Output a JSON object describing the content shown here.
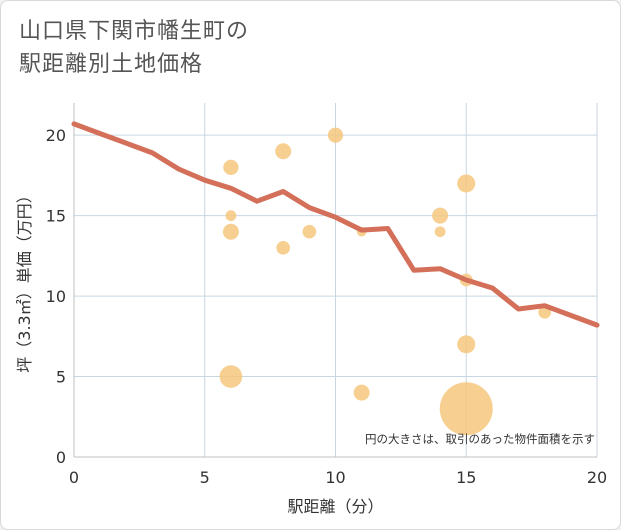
{
  "page": {
    "title_line1": "山口県下関市幡生町の",
    "title_line2": "駅距離別土地価格"
  },
  "colors": {
    "bubble": "#f5c77e",
    "line": "#d4705a",
    "grid": "#c8d6e2",
    "frame": "#c0c0c0"
  },
  "chart_data": {
    "type": "scatter",
    "title": "山口県下関市幡生町の駅距離別土地価格",
    "xlabel": "駅距離（分）",
    "ylabel": "坪（3.3㎡）単価（万円）",
    "xlim": [
      0,
      20
    ],
    "ylim": [
      0,
      22
    ],
    "xticks": [
      0,
      5,
      10,
      15,
      20
    ],
    "yticks": [
      0,
      5,
      10,
      15,
      20
    ],
    "x_tick_labels": [
      "0",
      "5",
      "10",
      "15",
      "20"
    ],
    "y_tick_labels": [
      "0",
      "5",
      "10",
      "15",
      "20"
    ],
    "note": "円の大きさは、取引のあった物件面積を示す",
    "bubbles": [
      {
        "x": 6,
        "y": 18,
        "size": 1
      },
      {
        "x": 6,
        "y": 15,
        "size": 0.5
      },
      {
        "x": 6,
        "y": 14,
        "size": 1.1
      },
      {
        "x": 6,
        "y": 5,
        "size": 2.2
      },
      {
        "x": 8,
        "y": 19,
        "size": 1.1
      },
      {
        "x": 8,
        "y": 13,
        "size": 0.8
      },
      {
        "x": 9,
        "y": 14,
        "size": 0.8
      },
      {
        "x": 10,
        "y": 20,
        "size": 1
      },
      {
        "x": 11,
        "y": 14,
        "size": 0.4
      },
      {
        "x": 11,
        "y": 4,
        "size": 1.1
      },
      {
        "x": 14,
        "y": 15,
        "size": 1.1
      },
      {
        "x": 14,
        "y": 14,
        "size": 0.5
      },
      {
        "x": 15,
        "y": 17,
        "size": 1.4
      },
      {
        "x": 15,
        "y": 11,
        "size": 0.7
      },
      {
        "x": 15,
        "y": 7,
        "size": 1.4
      },
      {
        "x": 15,
        "y": 3,
        "size": 12
      },
      {
        "x": 18,
        "y": 9,
        "size": 0.7
      }
    ],
    "trend": {
      "x": [
        0,
        1,
        2,
        3,
        4,
        5,
        6,
        7,
        8,
        9,
        10,
        11,
        12,
        13,
        14,
        15,
        16,
        17,
        18,
        19,
        20
      ],
      "y": [
        20.7,
        20.1,
        19.5,
        18.9,
        17.9,
        17.2,
        16.7,
        15.9,
        16.5,
        15.5,
        14.9,
        14.1,
        14.2,
        11.6,
        11.7,
        11.0,
        10.5,
        9.2,
        9.4,
        8.8,
        8.2
      ]
    }
  }
}
